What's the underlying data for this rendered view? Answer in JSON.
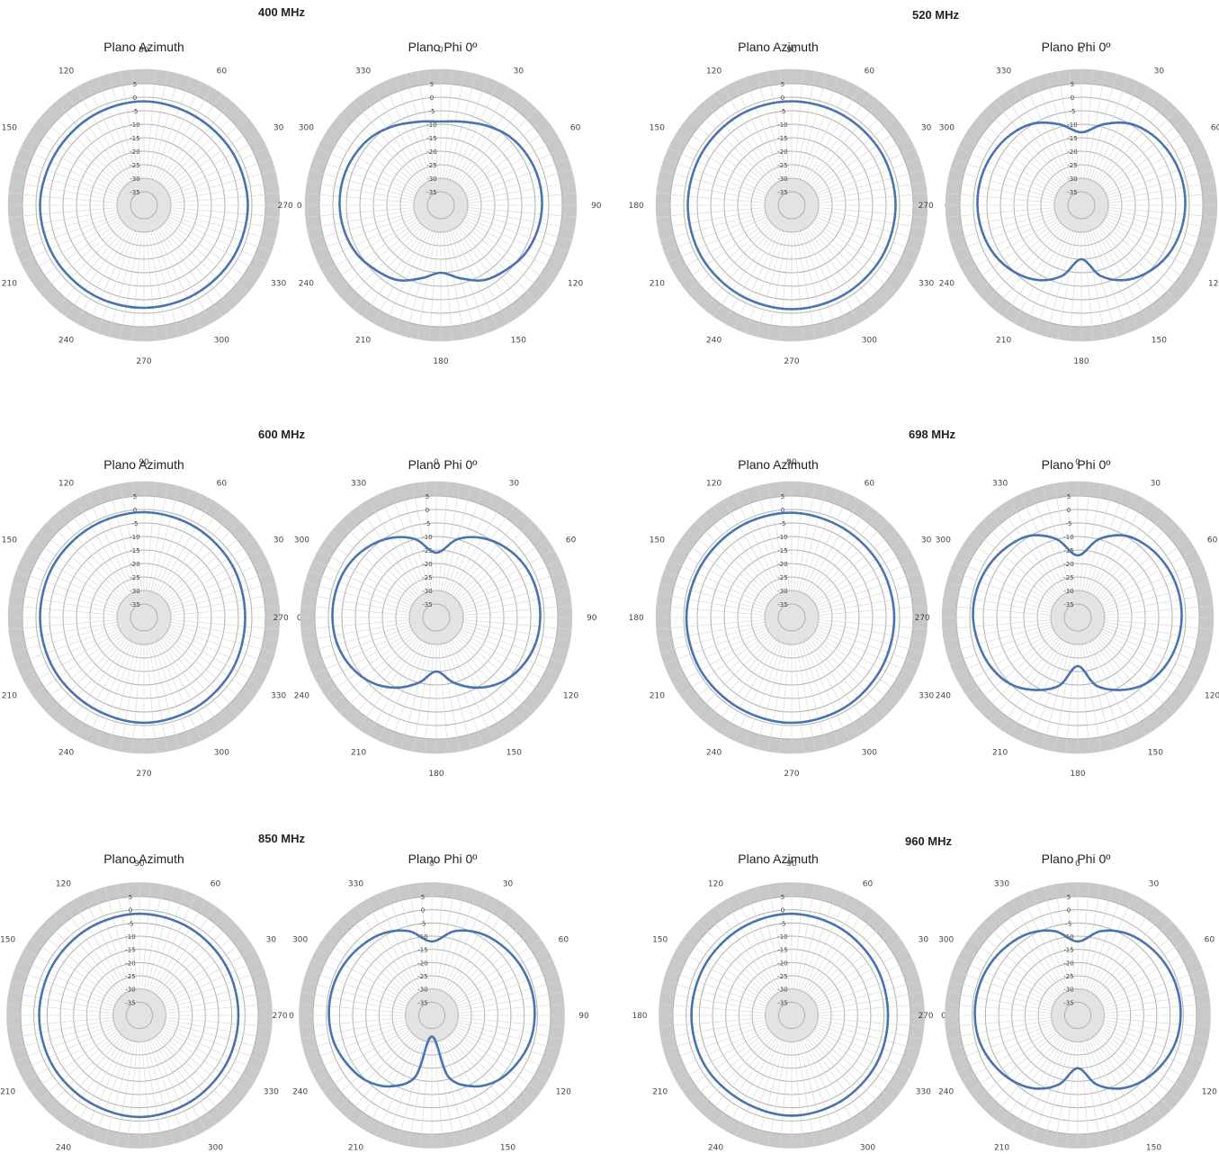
{
  "chart_data": [
    {
      "type": "polar",
      "frequency_label": "400 MHz",
      "title": "Plano Azimuth",
      "plane": "azimuth",
      "angle_ticks": [
        "0",
        "30",
        "60",
        "90",
        "120",
        "150",
        "180",
        "210",
        "240",
        "270",
        "300",
        "330"
      ],
      "radial_ticks": [
        "5",
        "0",
        "-5",
        "-10",
        "-15",
        "-20",
        "-25",
        "-30",
        "-35"
      ],
      "rlim": [
        -40,
        5
      ],
      "color": "#4a72b0",
      "theta": [
        0,
        30,
        60,
        90,
        120,
        150,
        180,
        210,
        240,
        270,
        300,
        330
      ],
      "r": [
        -1.5,
        -1.8,
        -2.0,
        -1.5,
        -1.8,
        -2.0,
        -1.5,
        -1.6,
        -1.8,
        -2.0,
        -2.0,
        -1.7
      ]
    },
    {
      "type": "polar",
      "frequency_label": "400 MHz",
      "title": "Plano Phi 0º",
      "plane": "elevation",
      "angle_ticks": [
        "0",
        "30",
        "60",
        "90",
        "120",
        "150",
        "180",
        "210",
        "240",
        "270",
        "300",
        "330"
      ],
      "radial_ticks": [
        "5",
        "0",
        "-5",
        "-10",
        "-15",
        "-20",
        "-25",
        "-30",
        "-35"
      ],
      "rlim": [
        -40,
        5
      ],
      "color": "#4a72b0",
      "theta": [
        0,
        15,
        30,
        45,
        60,
        75,
        90,
        105,
        120,
        135,
        150,
        165,
        180,
        195,
        210,
        225,
        240,
        255,
        270,
        285,
        300,
        315,
        330,
        345
      ],
      "r": [
        -9,
        -8,
        -6,
        -4,
        -3,
        -2.5,
        -2.5,
        -3,
        -4,
        -6,
        -8,
        -12,
        -15,
        -12,
        -8,
        -6,
        -4,
        -3,
        -2.5,
        -2.5,
        -3,
        -4,
        -6,
        -8
      ]
    },
    {
      "type": "polar",
      "frequency_label": "520 MHz",
      "title": "Plano Azimuth",
      "plane": "azimuth",
      "angle_ticks": [
        "0",
        "30",
        "60",
        "90",
        "120",
        "150",
        "180",
        "210",
        "240",
        "270",
        "300",
        "330"
      ],
      "radial_ticks": [
        "5",
        "0",
        "-5",
        "-10",
        "-15",
        "-20",
        "-25",
        "-30",
        "-35"
      ],
      "rlim": [
        -40,
        5
      ],
      "color": "#4a72b0",
      "theta": [
        0,
        30,
        60,
        90,
        120,
        150,
        180,
        210,
        240,
        270,
        300,
        330
      ],
      "r": [
        -1.5,
        -1.5,
        -1.6,
        -1.5,
        -1.4,
        -1.5,
        -1.5,
        -1.5,
        -1.6,
        -1.5,
        -1.6,
        -1.5
      ]
    },
    {
      "type": "polar",
      "frequency_label": "520 MHz",
      "title": "Plano Phi 0º",
      "plane": "elevation",
      "angle_ticks": [
        "0",
        "30",
        "60",
        "90",
        "120",
        "150",
        "180",
        "210",
        "240",
        "270",
        "300",
        "330"
      ],
      "radial_ticks": [
        "5",
        "0",
        "-5",
        "-10",
        "-15",
        "-20",
        "-25",
        "-30",
        "-35"
      ],
      "rlim": [
        -40,
        5
      ],
      "color": "#4a72b0",
      "theta": [
        0,
        15,
        30,
        45,
        60,
        75,
        90,
        105,
        120,
        135,
        150,
        165,
        180,
        195,
        210,
        225,
        240,
        255,
        270,
        285,
        300,
        315,
        330,
        345
      ],
      "r": [
        -13,
        -9,
        -5,
        -3,
        -2,
        -1.5,
        -1.5,
        -2,
        -3,
        -5,
        -8,
        -13,
        -20,
        -13,
        -8,
        -5,
        -3,
        -2,
        -1.5,
        -1.5,
        -2,
        -3,
        -5,
        -9
      ]
    },
    {
      "type": "polar",
      "frequency_label": "600 MHz",
      "title": "Plano Azimuth",
      "plane": "azimuth",
      "angle_ticks": [
        "0",
        "30",
        "60",
        "90",
        "120",
        "150",
        "180",
        "210",
        "240",
        "270",
        "300",
        "330"
      ],
      "radial_ticks": [
        "5",
        "0",
        "-5",
        "-10",
        "-15",
        "-20",
        "-25",
        "-30",
        "-35"
      ],
      "rlim": [
        -40,
        5
      ],
      "color": "#4a72b0",
      "theta": [
        0,
        30,
        60,
        90,
        120,
        150,
        180,
        210,
        240,
        270,
        300,
        330
      ],
      "r": [
        -2.5,
        -2.0,
        -1.5,
        -1.0,
        -1.2,
        -1.3,
        -1.5,
        -1.5,
        -1.5,
        -1.0,
        -1.5,
        -2.0
      ]
    },
    {
      "type": "polar",
      "frequency_label": "600 MHz",
      "title": "Plano Phi 0º",
      "plane": "elevation",
      "angle_ticks": [
        "0",
        "30",
        "60",
        "90",
        "120",
        "150",
        "180",
        "210",
        "240",
        "270",
        "300",
        "330"
      ],
      "radial_ticks": [
        "5",
        "0",
        "-5",
        "-10",
        "-15",
        "-20",
        "-25",
        "-30",
        "-35"
      ],
      "rlim": [
        -40,
        5
      ],
      "color": "#4a72b0",
      "theta": [
        0,
        15,
        30,
        45,
        60,
        75,
        90,
        105,
        120,
        135,
        150,
        165,
        180,
        195,
        210,
        225,
        240,
        255,
        270,
        285,
        300,
        315,
        330,
        345
      ],
      "r": [
        -16,
        -10,
        -6,
        -3.5,
        -2,
        -1.5,
        -1.5,
        -2,
        -3.5,
        -6,
        -10,
        -15,
        -20,
        -15,
        -10,
        -6,
        -3.5,
        -2,
        -1.5,
        -1.5,
        -2,
        -3.5,
        -6,
        -10
      ]
    },
    {
      "type": "polar",
      "frequency_label": "698 MHz",
      "title": "Plano Azimuth",
      "plane": "azimuth",
      "angle_ticks": [
        "0",
        "30",
        "60",
        "90",
        "120",
        "150",
        "180",
        "210",
        "240",
        "270",
        "300",
        "330"
      ],
      "radial_ticks": [
        "5",
        "0",
        "-5",
        "-10",
        "-15",
        "-20",
        "-25",
        "-30",
        "-35"
      ],
      "rlim": [
        -40,
        5
      ],
      "color": "#4a72b0",
      "theta": [
        0,
        30,
        60,
        90,
        120,
        150,
        180,
        210,
        240,
        270,
        300,
        330
      ],
      "r": [
        -2.0,
        -2.0,
        -1.8,
        -1.2,
        -1.2,
        -1.3,
        -1.0,
        -1.0,
        -1.2,
        -1.0,
        -1.3,
        -1.8
      ]
    },
    {
      "type": "polar",
      "frequency_label": "698 MHz",
      "title": "Plano Phi 0º",
      "plane": "elevation",
      "angle_ticks": [
        "0",
        "30",
        "60",
        "90",
        "120",
        "150",
        "180",
        "210",
        "240",
        "270",
        "300",
        "330"
      ],
      "radial_ticks": [
        "5",
        "0",
        "-5",
        "-10",
        "-15",
        "-20",
        "-25",
        "-30",
        "-35"
      ],
      "rlim": [
        -40,
        5
      ],
      "color": "#4a72b0",
      "theta": [
        0,
        15,
        30,
        45,
        60,
        75,
        90,
        105,
        120,
        135,
        150,
        165,
        180,
        195,
        210,
        225,
        240,
        255,
        270,
        285,
        300,
        315,
        330,
        345
      ],
      "r": [
        -17,
        -10,
        -5,
        -3,
        -2,
        -1.5,
        -1.5,
        -2,
        -3,
        -5,
        -9,
        -14,
        -22,
        -14,
        -9,
        -5,
        -3,
        -2,
        -1.2,
        -1.2,
        -1.8,
        -3,
        -5,
        -10
      ]
    },
    {
      "type": "polar",
      "frequency_label": "850 MHz",
      "title": "Plano Azimuth",
      "plane": "azimuth",
      "angle_ticks": [
        "0",
        "30",
        "60",
        "90",
        "120",
        "150",
        "180",
        "210",
        "240",
        "270",
        "300",
        "330"
      ],
      "radial_ticks": [
        "5",
        "0",
        "-5",
        "-10",
        "-15",
        "-20",
        "-25",
        "-30",
        "-35"
      ],
      "rlim": [
        -40,
        5
      ],
      "color": "#4a72b0",
      "theta": [
        0,
        30,
        60,
        90,
        120,
        150,
        180,
        210,
        240,
        270,
        300,
        330
      ],
      "r": [
        -2.5,
        -2.2,
        -1.8,
        -1.5,
        -1.8,
        -2.0,
        -2.0,
        -2.0,
        -2.0,
        -1.5,
        -2.0,
        -2.3
      ]
    },
    {
      "type": "polar",
      "frequency_label": "850 MHz",
      "title": "Plano Phi 0º",
      "plane": "elevation",
      "angle_ticks": [
        "0",
        "30",
        "60",
        "90",
        "120",
        "150",
        "180",
        "210",
        "240",
        "270",
        "300",
        "330"
      ],
      "radial_ticks": [
        "5",
        "0",
        "-5",
        "-10",
        "-15",
        "-20",
        "-25",
        "-30",
        "-35"
      ],
      "rlim": [
        -40,
        5
      ],
      "color": "#4a72b0",
      "theta": [
        0,
        15,
        30,
        45,
        60,
        75,
        90,
        105,
        120,
        135,
        150,
        165,
        180,
        195,
        210,
        225,
        240,
        255,
        270,
        285,
        300,
        315,
        330,
        345
      ],
      "r": [
        -12,
        -7,
        -4,
        -2.5,
        -1.5,
        -1,
        -1,
        -1.5,
        -3,
        -5,
        -9,
        -16,
        -32,
        -16,
        -9,
        -5,
        -3,
        -1.5,
        -1,
        -1,
        -1.5,
        -2.5,
        -4,
        -7
      ]
    },
    {
      "type": "polar",
      "frequency_label": "960 MHz",
      "title": "Plano Azimuth",
      "plane": "azimuth",
      "angle_ticks": [
        "0",
        "30",
        "60",
        "90",
        "120",
        "150",
        "180",
        "210",
        "240",
        "270",
        "300",
        "330"
      ],
      "radial_ticks": [
        "5",
        "0",
        "-5",
        "-10",
        "-15",
        "-20",
        "-25",
        "-30",
        "-35"
      ],
      "rlim": [
        -40,
        5
      ],
      "color": "#4a72b0",
      "theta": [
        0,
        30,
        60,
        90,
        120,
        150,
        180,
        210,
        240,
        270,
        300,
        330
      ],
      "r": [
        -3.5,
        -3.0,
        -2.2,
        -1.5,
        -1.8,
        -2.0,
        -2.0,
        -2.0,
        -2.5,
        -2.0,
        -2.5,
        -3.0
      ]
    },
    {
      "type": "polar",
      "frequency_label": "960 MHz",
      "title": "Plano Phi 0º",
      "plane": "elevation",
      "angle_ticks": [
        "0",
        "30",
        "60",
        "90",
        "120",
        "150",
        "180",
        "210",
        "240",
        "270",
        "300",
        "330"
      ],
      "radial_ticks": [
        "5",
        "0",
        "-5",
        "-10",
        "-15",
        "-20",
        "-25",
        "-30",
        "-35"
      ],
      "rlim": [
        -40,
        5
      ],
      "color": "#4a72b0",
      "theta": [
        0,
        15,
        30,
        45,
        60,
        75,
        90,
        105,
        120,
        135,
        150,
        165,
        180,
        195,
        210,
        225,
        240,
        255,
        270,
        285,
        300,
        315,
        330,
        345
      ],
      "r": [
        -12,
        -7,
        -4,
        -2.5,
        -1.5,
        -1,
        -1,
        -1.5,
        -3,
        -5,
        -8,
        -13,
        -20,
        -13,
        -8,
        -5,
        -3,
        -1.5,
        -1,
        -1,
        -1.5,
        -2.5,
        -4,
        -7
      ]
    }
  ]
}
